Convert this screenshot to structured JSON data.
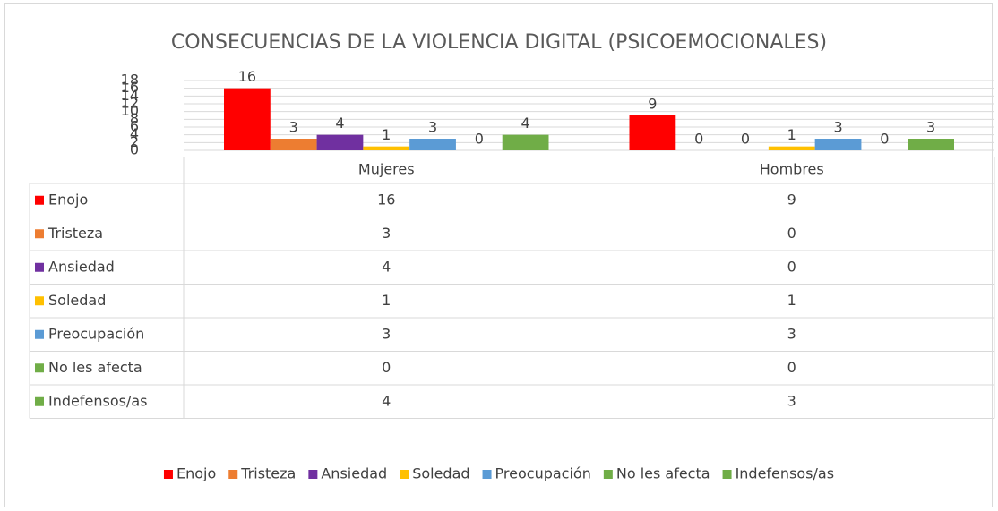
{
  "chart_data": {
    "type": "bar",
    "title": "CONSECUENCIAS DE LA VIOLENCIA DIGITAL (PSICOEMOCIONALES)",
    "categories": [
      "Mujeres",
      "Hombres"
    ],
    "series": [
      {
        "name": "Enojo",
        "color": "#ff0000",
        "values": [
          16,
          9
        ]
      },
      {
        "name": "Tristeza",
        "color": "#ed7d31",
        "values": [
          3,
          0
        ]
      },
      {
        "name": "Ansiedad",
        "color": "#7030a0",
        "values": [
          4,
          0
        ]
      },
      {
        "name": "Soledad",
        "color": "#ffc000",
        "values": [
          1,
          1
        ]
      },
      {
        "name": "Preocupación",
        "color": "#5b9bd5",
        "values": [
          3,
          3
        ]
      },
      {
        "name": "No les afecta",
        "color": "#70ad47",
        "values": [
          0,
          0
        ]
      },
      {
        "name": "Indefensos/as",
        "color": "#70ad47",
        "values": [
          4,
          3
        ]
      }
    ],
    "ylim": [
      0,
      18
    ],
    "yticks": [
      0,
      2,
      4,
      6,
      8,
      10,
      12,
      14,
      16,
      18
    ],
    "grid": true,
    "legend": "bottom",
    "data_table": true
  }
}
